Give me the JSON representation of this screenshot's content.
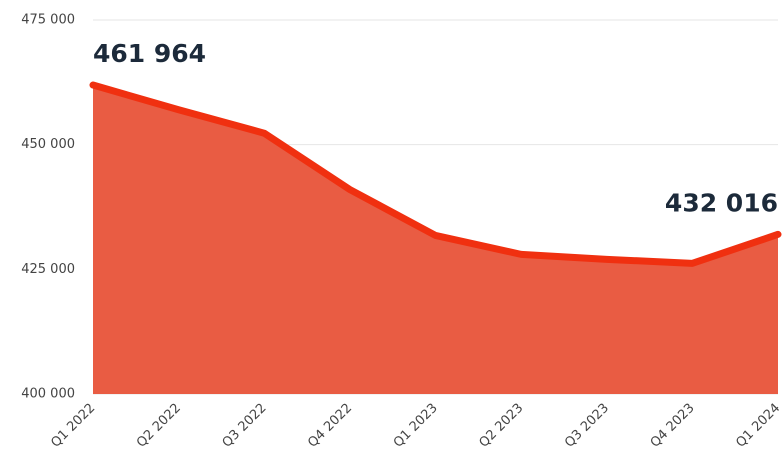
{
  "chart_data": {
    "type": "area",
    "categories": [
      "Q1 2022",
      "Q2 2022",
      "Q3 2022",
      "Q4 2022",
      "Q1 2023",
      "Q2 2023",
      "Q3 2023",
      "Q4 2023",
      "Q1 2024"
    ],
    "values": [
      461964,
      457000,
      452300,
      441000,
      431800,
      428000,
      427000,
      426200,
      432016
    ],
    "value_labels": [
      "461 964",
      null,
      null,
      null,
      null,
      null,
      null,
      null,
      "432 016"
    ],
    "color": "#e95c43",
    "line_color": "#f03010",
    "ylim": [
      400000,
      475000
    ],
    "yticks": [
      {
        "value": 400000,
        "label": "400 000"
      },
      {
        "value": 425000,
        "label": "425 000"
      },
      {
        "value": 450000,
        "label": "450 000"
      },
      {
        "value": 475000,
        "label": "475 000"
      }
    ],
    "grid": true
  }
}
